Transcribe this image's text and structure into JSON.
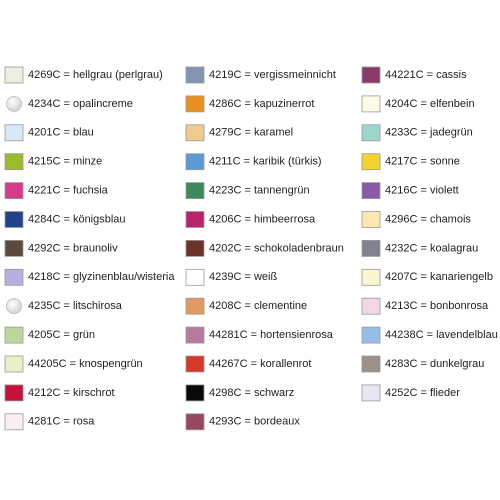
{
  "columns": [
    {
      "items": [
        {
          "label": "4269C = hellgrau (perlgrau)",
          "color": "#eeeee0"
        },
        {
          "label": "4234C = opalincreme",
          "color": "#e6e6e6",
          "shape": "circle"
        },
        {
          "label": "4201C = blau",
          "color": "#d6e9f5"
        },
        {
          "label": "4215C = minze",
          "color": "#9bbb2c"
        },
        {
          "label": "4221C = fuchsia",
          "color": "#d63a8c"
        },
        {
          "label": "4284C = königsblau",
          "color": "#22428a"
        },
        {
          "label": "4292C = braunoliv",
          "color": "#5b4a3e"
        },
        {
          "label": "4218C = glyzinenblau/wisteria",
          "color": "#b8aee0"
        },
        {
          "label": "4235C = litschirosa",
          "color": "#e6e6e6",
          "shape": "circle"
        },
        {
          "label": "4205C = grün",
          "color": "#b9d89a"
        },
        {
          "label": "44205C = knospengrün",
          "color": "#e8f0c8"
        },
        {
          "label": "4212C = kirschrot",
          "color": "#c8103c"
        },
        {
          "label": "4281C = rosa",
          "color": "#fdeef3"
        }
      ]
    },
    {
      "items": [
        {
          "label": "4219C = vergissmeinnicht",
          "color": "#8393b4"
        },
        {
          "label": "4286C = kapuzinerrot",
          "color": "#e8901e"
        },
        {
          "label": "4279C = karamel",
          "color": "#eecb8c"
        },
        {
          "label": "4211C = karibik (türkis)",
          "color": "#5a9bd5"
        },
        {
          "label": "4223C = tannengrün",
          "color": "#3e8a5a"
        },
        {
          "label": "4206C = himbeerrosa",
          "color": "#b8236a"
        },
        {
          "label": "4202C = schokoladenbraun",
          "color": "#6a3428"
        },
        {
          "label": "4239C = weiß",
          "color": "#ffffff"
        },
        {
          "label": "4208C = clementine",
          "color": "#e09a62"
        },
        {
          "label": "44281C = hortensienrosa",
          "color": "#b87aa0"
        },
        {
          "label": "44267C = korallenrot",
          "color": "#d43a2a"
        },
        {
          "label": "4298C = schwarz",
          "color": "#0a0a0a"
        },
        {
          "label": "4293C = bordeaux",
          "color": "#98485e"
        }
      ]
    },
    {
      "items": [
        {
          "label": "44221C = cassis",
          "color": "#8a3a6a"
        },
        {
          "label": "4204C = elfenbein",
          "color": "#fdfbe6"
        },
        {
          "label": "4233C = jadegrün",
          "color": "#9fd6cc"
        },
        {
          "label": "4217C = sonne",
          "color": "#f0d530"
        },
        {
          "label": "4216C = violett",
          "color": "#8a5aa8"
        },
        {
          "label": "4296C = chamois",
          "color": "#fbe8b0"
        },
        {
          "label": "4232C = koalagrau",
          "color": "#7e8292"
        },
        {
          "label": "4207C = kanariengelb",
          "color": "#fcf6d0"
        },
        {
          "label": "4213C = bonbonrosa",
          "color": "#f2d8e6"
        },
        {
          "label": "44238C = lavendelblau",
          "color": "#98bde6"
        },
        {
          "label": "4283C = dunkelgrau",
          "color": "#9a9288"
        },
        {
          "label": "4252C = flieder",
          "color": "#e8e6f4"
        }
      ]
    }
  ]
}
